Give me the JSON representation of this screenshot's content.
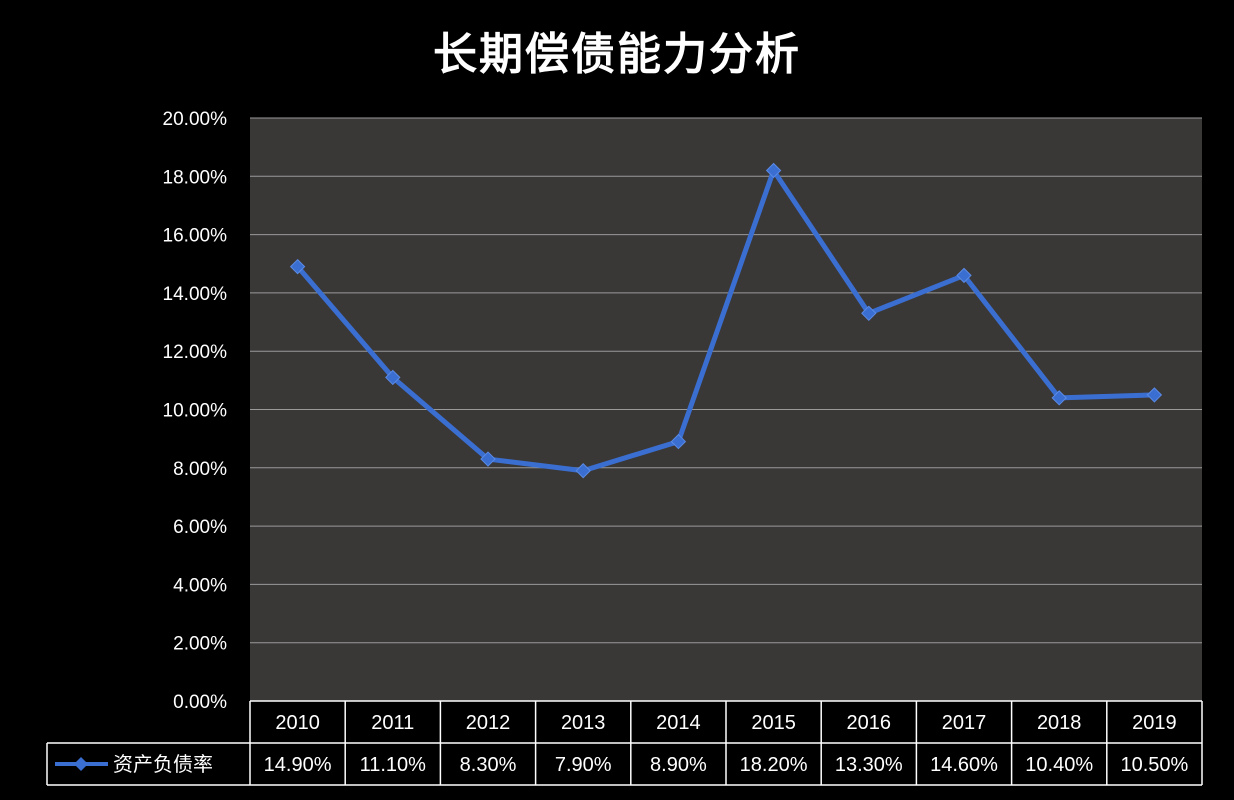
{
  "chart_data": {
    "type": "line",
    "title": "长期偿债能力分析",
    "categories": [
      "2010",
      "2011",
      "2012",
      "2013",
      "2014",
      "2015",
      "2016",
      "2017",
      "2018",
      "2019"
    ],
    "series": [
      {
        "name": "资产负债率",
        "values": [
          14.9,
          11.1,
          8.3,
          7.9,
          8.9,
          18.2,
          13.3,
          14.6,
          10.4,
          10.5
        ],
        "labels": [
          "14.90%",
          "11.10%",
          "8.30%",
          "7.90%",
          "8.90%",
          "18.20%",
          "13.30%",
          "14.60%",
          "10.40%",
          "10.50%"
        ],
        "color": "#3A6FD1",
        "marker": "diamond"
      }
    ],
    "yticks": [
      "0.00%",
      "2.00%",
      "4.00%",
      "6.00%",
      "8.00%",
      "10.00%",
      "12.00%",
      "14.00%",
      "16.00%",
      "18.00%",
      "20.00%"
    ],
    "ylim": [
      0,
      20
    ],
    "grid": true,
    "legend": "data-table-left",
    "colors": {
      "background": "#000000",
      "plot_area": "#3A3737",
      "gridline": "#9A9A9A",
      "text": "#FFFFFF"
    }
  }
}
